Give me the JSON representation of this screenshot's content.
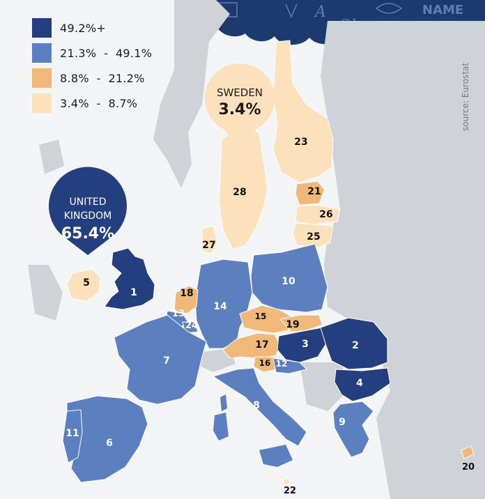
{
  "legend": [
    {
      "label": "49.2%+",
      "color": "#243f7f"
    },
    {
      "label": "21.3%  -  49.1%",
      "color": "#5b7fbf"
    },
    {
      "label": "8.8%  -  21.2%",
      "color": "#f0b97a"
    },
    {
      "label": "3.4%  -  8.7%",
      "color": "#fde1bc"
    }
  ],
  "source": "source: Eurostat",
  "banner_text": [
    "A",
    "Ola",
    "NAME"
  ],
  "callouts": {
    "sweden": {
      "name": "SWEDEN",
      "value": "3.4%"
    },
    "uk": {
      "name_line1": "UNITED",
      "name_line2": "KINGDOM",
      "value": "65.4%"
    }
  },
  "regions": [
    {
      "id": "1",
      "label": "1",
      "color": "#243f7f"
    },
    {
      "id": "2",
      "label": "2",
      "color": "#243f7f"
    },
    {
      "id": "3",
      "label": "3",
      "color": "#243f7f"
    },
    {
      "id": "4",
      "label": "4",
      "color": "#243f7f"
    },
    {
      "id": "5",
      "label": "5",
      "color": "#fde1bc"
    },
    {
      "id": "6",
      "label": "6",
      "color": "#5b7fbf"
    },
    {
      "id": "7",
      "label": "7",
      "color": "#5b7fbf"
    },
    {
      "id": "8",
      "label": "8",
      "color": "#5b7fbf"
    },
    {
      "id": "9",
      "label": "9",
      "color": "#5b7fbf"
    },
    {
      "id": "10",
      "label": "10",
      "color": "#5b7fbf"
    },
    {
      "id": "11",
      "label": "11",
      "color": "#5b7fbf"
    },
    {
      "id": "12",
      "label": "12",
      "color": "#5b7fbf"
    },
    {
      "id": "13",
      "label": "13",
      "color": "#5b7fbf"
    },
    {
      "id": "14",
      "label": "14",
      "color": "#5b7fbf"
    },
    {
      "id": "15",
      "label": "15",
      "color": "#f0b97a"
    },
    {
      "id": "16",
      "label": "16",
      "color": "#f0b97a"
    },
    {
      "id": "17",
      "label": "17",
      "color": "#f0b97a"
    },
    {
      "id": "18",
      "label": "18",
      "color": "#f0b97a"
    },
    {
      "id": "19",
      "label": "19",
      "color": "#f0b97a"
    },
    {
      "id": "20",
      "label": "20",
      "color": "#f0b97a"
    },
    {
      "id": "21",
      "label": "21",
      "color": "#f0b97a"
    },
    {
      "id": "22",
      "label": "22",
      "color": "#fde1bc"
    },
    {
      "id": "23",
      "label": "23",
      "color": "#fde1bc"
    },
    {
      "id": "24",
      "label": "24",
      "color": "#5b7fbf"
    },
    {
      "id": "25",
      "label": "25",
      "color": "#fde1bc"
    },
    {
      "id": "26",
      "label": "26",
      "color": "#fde1bc"
    },
    {
      "id": "27",
      "label": "27",
      "color": "#fde1bc"
    },
    {
      "id": "28",
      "label": "28",
      "color": "#fde1bc"
    }
  ],
  "colors": {
    "background": "#f3f4f6",
    "land_other": "#cfd3d8",
    "banner": "#1d3a6e",
    "callout_sweden_bg": "#fde1bc",
    "callout_uk_bg": "#243f7f",
    "label_light": "#ffffff",
    "label_dark": "#111111"
  }
}
